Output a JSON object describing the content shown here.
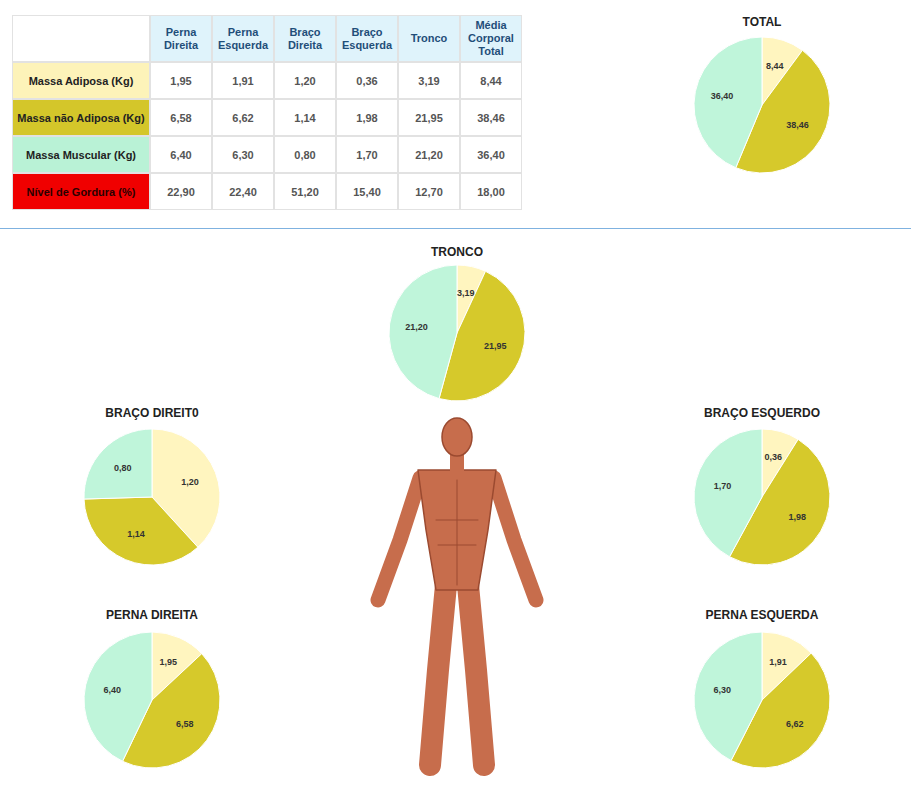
{
  "table": {
    "columns": [
      "Perna Direita",
      "Perna Esquerda",
      "Braço Direita",
      "Braço Esquerda",
      "Tronco",
      "Média Corporal Total"
    ],
    "rows": [
      {
        "label": "Massa Adiposa (Kg)",
        "color": "#fdf3b9",
        "cells": [
          "1,95",
          "1,91",
          "1,20",
          "0,36",
          "3,19",
          "8,44"
        ]
      },
      {
        "label": "Massa não Adiposa (Kg)",
        "color": "#d4c62a",
        "cells": [
          "6,58",
          "6,62",
          "1,14",
          "1,98",
          "21,95",
          "38,46"
        ]
      },
      {
        "label": "Massa Muscular (Kg)",
        "color": "#b9f2d6",
        "cells": [
          "6,40",
          "6,30",
          "0,80",
          "1,70",
          "21,20",
          "36,40"
        ]
      },
      {
        "label": "Nível de Gordura (%)",
        "color": "#f00000",
        "cells": [
          "22,90",
          "22,40",
          "51,20",
          "15,40",
          "12,70",
          "18,00"
        ]
      }
    ]
  },
  "chart_data": [
    {
      "type": "pie",
      "title": "TOTAL",
      "values": [
        8.44,
        38.46,
        36.4
      ],
      "value_labels": [
        "8,44",
        "38,46",
        "36,40"
      ],
      "colors": [
        "#fff5bf",
        "#d6c92b",
        "#bff5da"
      ],
      "data_labels": true
    },
    {
      "type": "pie",
      "title": "TRONCO",
      "values": [
        3.19,
        21.95,
        21.2
      ],
      "value_labels": [
        "3,19",
        "21,95",
        "21,20"
      ],
      "colors": [
        "#fff5bf",
        "#d6c92b",
        "#bff5da"
      ],
      "data_labels": true
    },
    {
      "type": "pie",
      "title": "BRAÇO DIREIT0",
      "values": [
        1.2,
        1.14,
        0.8
      ],
      "value_labels": [
        "1,20",
        "1,14",
        "0,80"
      ],
      "colors": [
        "#fff5bf",
        "#d6c92b",
        "#bff5da"
      ],
      "data_labels": true
    },
    {
      "type": "pie",
      "title": "BRAÇO ESQUERDO",
      "values": [
        0.36,
        1.98,
        1.7
      ],
      "value_labels": [
        "0,36",
        "1,98",
        "1,70"
      ],
      "colors": [
        "#fff5bf",
        "#d6c92b",
        "#bff5da"
      ],
      "data_labels": true
    },
    {
      "type": "pie",
      "title": "PERNA DIREITA",
      "values": [
        1.95,
        6.58,
        6.4
      ],
      "value_labels": [
        "1,95",
        "6,58",
        "6,40"
      ],
      "colors": [
        "#fff5bf",
        "#d6c92b",
        "#bff5da"
      ],
      "data_labels": true
    },
    {
      "type": "pie",
      "title": "PERNA ESQUERDA",
      "values": [
        1.91,
        6.62,
        6.3
      ],
      "value_labels": [
        "1,91",
        "6,62",
        "6,30"
      ],
      "colors": [
        "#fff5bf",
        "#d6c92b",
        "#bff5da"
      ],
      "data_labels": true
    }
  ]
}
